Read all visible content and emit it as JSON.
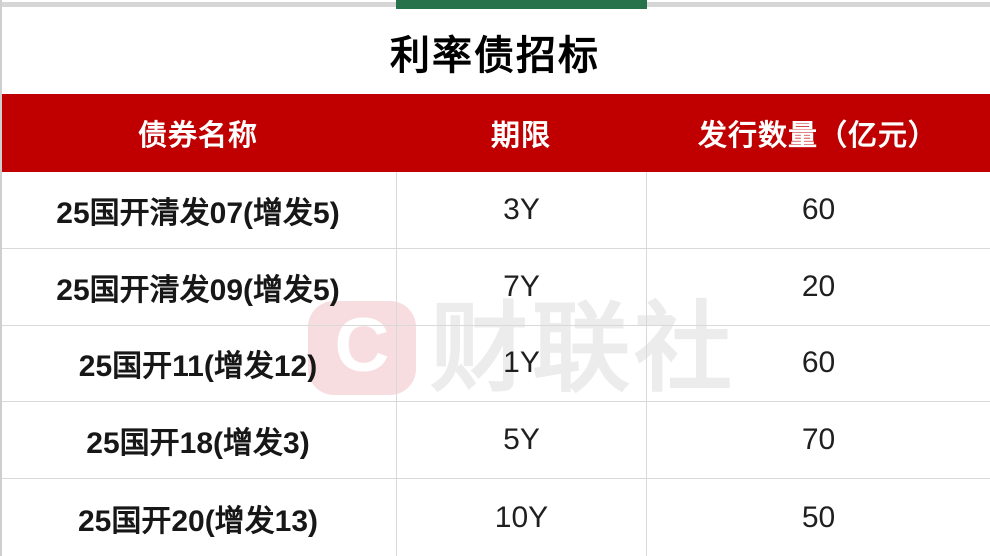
{
  "title": "利率债招标",
  "header": {
    "name": "债券名称",
    "term": "期限",
    "amount": "发行数量（亿元）"
  },
  "table": {
    "rows": [
      {
        "name": "25国开清发07(增发5)",
        "term": "3Y",
        "amount": "60"
      },
      {
        "name": "25国开清发09(增发5)",
        "term": "7Y",
        "amount": "20"
      },
      {
        "name": "25国开11(增发12)",
        "term": "1Y",
        "amount": "60"
      },
      {
        "name": "25国开18(增发3)",
        "term": "5Y",
        "amount": "70"
      },
      {
        "name": "25国开20(增发13)",
        "term": "10Y",
        "amount": "50"
      }
    ]
  },
  "watermark": {
    "logo_letter": "C",
    "text": "财联社"
  },
  "colors": {
    "header_red": "#c00000",
    "tab_green": "#27724a",
    "gridline": "#d9d9d9",
    "watermark_pink": "#f7dde0",
    "watermark_gray": "#ececec"
  }
}
